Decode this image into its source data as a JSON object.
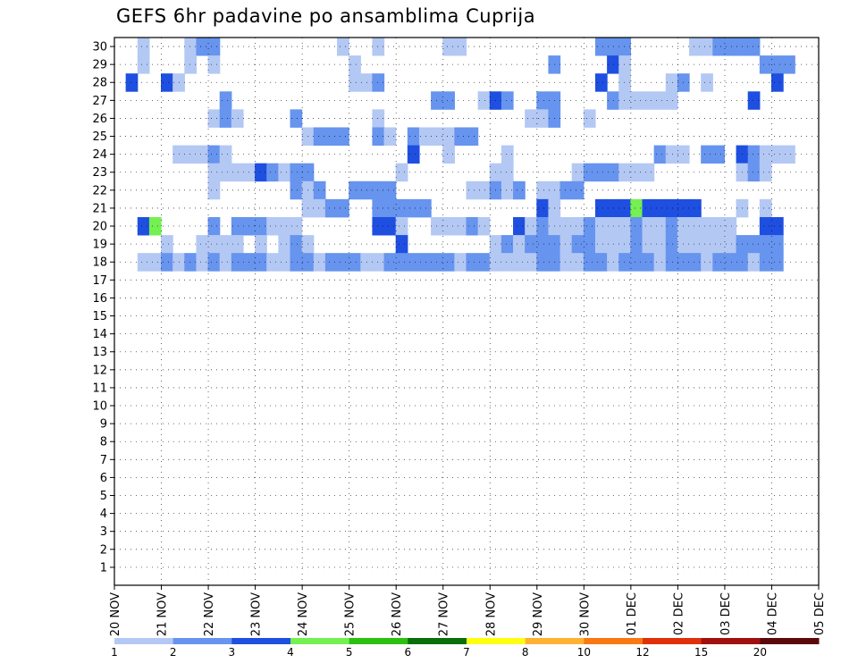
{
  "chart_data": {
    "type": "heatmap",
    "title": "GEFS 6hr padavine po ansamblima Cuprija",
    "xlabel": "",
    "ylabel": "",
    "x_ticks": [
      "20 NOV",
      "21 NOV",
      "22 NOV",
      "23 NOV",
      "24 NOV",
      "25 NOV",
      "26 NOV",
      "27 NOV",
      "28 NOV",
      "29 NOV",
      "30 NOV",
      "01 DEC",
      "02 DEC",
      "03 DEC",
      "04 DEC",
      "05 DEC"
    ],
    "y_ticks": [
      "1",
      "2",
      "3",
      "4",
      "5",
      "6",
      "7",
      "8",
      "9",
      "10",
      "11",
      "12",
      "13",
      "14",
      "15",
      "16",
      "17",
      "18",
      "19",
      "20",
      "21",
      "22",
      "23",
      "24",
      "25",
      "26",
      "27",
      "28",
      "29",
      "30"
    ],
    "x_range": [
      0,
      60
    ],
    "y_range": [
      0,
      30
    ],
    "time_step_hours": 6,
    "legend": {
      "placement": "bottom",
      "thresholds": [
        "1",
        "2",
        "3",
        "4",
        "5",
        "6",
        "7",
        "8",
        "10",
        "12",
        "15",
        "20"
      ],
      "colors": [
        "#b4c8f4",
        "#6694ee",
        "#1f4fe0",
        "#74f052",
        "#2cc012",
        "#0a6e0a",
        "#ffff14",
        "#ffb232",
        "#fa7812",
        "#e0300a",
        "#a01010",
        "#5a0a0a"
      ]
    },
    "cells": [
      [
        2,
        30,
        1
      ],
      [
        6,
        30,
        1
      ],
      [
        7,
        30,
        2
      ],
      [
        8,
        30,
        2
      ],
      [
        19,
        30,
        1
      ],
      [
        22,
        30,
        1
      ],
      [
        28,
        30,
        1
      ],
      [
        29,
        30,
        1
      ],
      [
        41,
        30,
        2
      ],
      [
        42,
        30,
        2
      ],
      [
        43,
        30,
        2
      ],
      [
        49,
        30,
        1
      ],
      [
        50,
        30,
        1
      ],
      [
        51,
        30,
        2
      ],
      [
        52,
        30,
        2
      ],
      [
        53,
        30,
        2
      ],
      [
        54,
        30,
        2
      ],
      [
        2,
        29,
        1
      ],
      [
        6,
        29,
        1
      ],
      [
        8,
        29,
        1
      ],
      [
        20,
        29,
        1
      ],
      [
        37,
        29,
        2
      ],
      [
        42,
        29,
        3
      ],
      [
        43,
        29,
        1
      ],
      [
        55,
        29,
        2
      ],
      [
        56,
        29,
        2
      ],
      [
        57,
        29,
        2
      ],
      [
        1,
        28,
        3
      ],
      [
        4,
        28,
        3
      ],
      [
        5,
        28,
        1
      ],
      [
        20,
        28,
        1
      ],
      [
        21,
        28,
        1
      ],
      [
        22,
        28,
        2
      ],
      [
        41,
        28,
        3
      ],
      [
        43,
        28,
        1
      ],
      [
        47,
        28,
        1
      ],
      [
        48,
        28,
        2
      ],
      [
        50,
        28,
        1
      ],
      [
        56,
        28,
        3
      ],
      [
        9,
        27,
        2
      ],
      [
        27,
        27,
        2
      ],
      [
        28,
        27,
        2
      ],
      [
        31,
        27,
        1
      ],
      [
        32,
        27,
        3
      ],
      [
        33,
        27,
        2
      ],
      [
        36,
        27,
        2
      ],
      [
        37,
        27,
        2
      ],
      [
        42,
        27,
        2
      ],
      [
        43,
        27,
        1
      ],
      [
        44,
        27,
        1
      ],
      [
        45,
        27,
        1
      ],
      [
        46,
        27,
        1
      ],
      [
        47,
        27,
        1
      ],
      [
        54,
        27,
        3
      ],
      [
        8,
        26,
        1
      ],
      [
        9,
        26,
        2
      ],
      [
        10,
        26,
        1
      ],
      [
        15,
        26,
        2
      ],
      [
        22,
        26,
        1
      ],
      [
        35,
        26,
        1
      ],
      [
        36,
        26,
        1
      ],
      [
        37,
        26,
        2
      ],
      [
        40,
        26,
        1
      ],
      [
        16,
        25,
        1
      ],
      [
        17,
        25,
        2
      ],
      [
        18,
        25,
        2
      ],
      [
        19,
        25,
        2
      ],
      [
        22,
        25,
        2
      ],
      [
        23,
        25,
        1
      ],
      [
        25,
        25,
        2
      ],
      [
        26,
        25,
        1
      ],
      [
        27,
        25,
        1
      ],
      [
        28,
        25,
        1
      ],
      [
        29,
        25,
        2
      ],
      [
        30,
        25,
        2
      ],
      [
        5,
        24,
        1
      ],
      [
        6,
        24,
        1
      ],
      [
        7,
        24,
        1
      ],
      [
        8,
        24,
        2
      ],
      [
        9,
        24,
        1
      ],
      [
        25,
        24,
        3
      ],
      [
        28,
        24,
        1
      ],
      [
        33,
        24,
        1
      ],
      [
        46,
        24,
        2
      ],
      [
        47,
        24,
        1
      ],
      [
        48,
        24,
        1
      ],
      [
        50,
        24,
        2
      ],
      [
        51,
        24,
        2
      ],
      [
        53,
        24,
        3
      ],
      [
        54,
        24,
        2
      ],
      [
        55,
        24,
        1
      ],
      [
        56,
        24,
        1
      ],
      [
        57,
        24,
        1
      ],
      [
        8,
        23,
        1
      ],
      [
        9,
        23,
        1
      ],
      [
        10,
        23,
        1
      ],
      [
        11,
        23,
        1
      ],
      [
        12,
        23,
        3
      ],
      [
        13,
        23,
        2
      ],
      [
        14,
        23,
        1
      ],
      [
        15,
        23,
        2
      ],
      [
        16,
        23,
        2
      ],
      [
        24,
        23,
        1
      ],
      [
        32,
        23,
        1
      ],
      [
        33,
        23,
        1
      ],
      [
        39,
        23,
        1
      ],
      [
        40,
        23,
        2
      ],
      [
        41,
        23,
        2
      ],
      [
        42,
        23,
        2
      ],
      [
        43,
        23,
        1
      ],
      [
        44,
        23,
        1
      ],
      [
        45,
        23,
        1
      ],
      [
        53,
        23,
        1
      ],
      [
        54,
        23,
        2
      ],
      [
        55,
        23,
        1
      ],
      [
        8,
        22,
        1
      ],
      [
        15,
        22,
        2
      ],
      [
        16,
        22,
        1
      ],
      [
        17,
        22,
        2
      ],
      [
        20,
        22,
        2
      ],
      [
        21,
        22,
        2
      ],
      [
        22,
        22,
        2
      ],
      [
        23,
        22,
        2
      ],
      [
        30,
        22,
        1
      ],
      [
        31,
        22,
        1
      ],
      [
        32,
        22,
        2
      ],
      [
        33,
        22,
        1
      ],
      [
        34,
        22,
        2
      ],
      [
        36,
        22,
        1
      ],
      [
        37,
        22,
        1
      ],
      [
        38,
        22,
        2
      ],
      [
        39,
        22,
        2
      ],
      [
        16,
        21,
        1
      ],
      [
        17,
        21,
        1
      ],
      [
        18,
        21,
        2
      ],
      [
        19,
        21,
        2
      ],
      [
        22,
        21,
        2
      ],
      [
        23,
        21,
        2
      ],
      [
        24,
        21,
        2
      ],
      [
        25,
        21,
        2
      ],
      [
        26,
        21,
        2
      ],
      [
        36,
        21,
        3
      ],
      [
        37,
        21,
        1
      ],
      [
        41,
        21,
        3
      ],
      [
        42,
        21,
        3
      ],
      [
        43,
        21,
        3
      ],
      [
        44,
        21,
        4
      ],
      [
        45,
        21,
        3
      ],
      [
        46,
        21,
        3
      ],
      [
        47,
        21,
        3
      ],
      [
        48,
        21,
        3
      ],
      [
        49,
        21,
        3
      ],
      [
        53,
        21,
        1
      ],
      [
        55,
        21,
        1
      ],
      [
        2,
        20,
        3
      ],
      [
        3,
        20,
        4
      ],
      [
        8,
        20,
        2
      ],
      [
        10,
        20,
        2
      ],
      [
        11,
        20,
        2
      ],
      [
        12,
        20,
        2
      ],
      [
        13,
        20,
        1
      ],
      [
        14,
        20,
        1
      ],
      [
        15,
        20,
        1
      ],
      [
        22,
        20,
        3
      ],
      [
        23,
        20,
        3
      ],
      [
        24,
        20,
        1
      ],
      [
        27,
        20,
        1
      ],
      [
        28,
        20,
        1
      ],
      [
        29,
        20,
        1
      ],
      [
        30,
        20,
        2
      ],
      [
        31,
        20,
        1
      ],
      [
        34,
        20,
        3
      ],
      [
        35,
        20,
        1
      ],
      [
        36,
        20,
        2
      ],
      [
        37,
        20,
        1
      ],
      [
        38,
        20,
        1
      ],
      [
        39,
        20,
        1
      ],
      [
        40,
        20,
        2
      ],
      [
        41,
        20,
        1
      ],
      [
        42,
        20,
        1
      ],
      [
        43,
        20,
        1
      ],
      [
        44,
        20,
        2
      ],
      [
        45,
        20,
        1
      ],
      [
        46,
        20,
        1
      ],
      [
        47,
        20,
        2
      ],
      [
        48,
        20,
        1
      ],
      [
        49,
        20,
        1
      ],
      [
        50,
        20,
        1
      ],
      [
        51,
        20,
        1
      ],
      [
        52,
        20,
        1
      ],
      [
        55,
        20,
        3
      ],
      [
        56,
        20,
        3
      ],
      [
        4,
        19,
        1
      ],
      [
        7,
        19,
        1
      ],
      [
        8,
        19,
        1
      ],
      [
        9,
        19,
        1
      ],
      [
        10,
        19,
        1
      ],
      [
        12,
        19,
        1
      ],
      [
        14,
        19,
        1
      ],
      [
        15,
        19,
        2
      ],
      [
        16,
        19,
        1
      ],
      [
        24,
        19,
        3
      ],
      [
        32,
        19,
        1
      ],
      [
        33,
        19,
        2
      ],
      [
        34,
        19,
        1
      ],
      [
        35,
        19,
        2
      ],
      [
        36,
        19,
        2
      ],
      [
        37,
        19,
        2
      ],
      [
        38,
        19,
        1
      ],
      [
        39,
        19,
        2
      ],
      [
        40,
        19,
        2
      ],
      [
        41,
        19,
        1
      ],
      [
        42,
        19,
        1
      ],
      [
        43,
        19,
        1
      ],
      [
        44,
        19,
        2
      ],
      [
        45,
        19,
        1
      ],
      [
        46,
        19,
        1
      ],
      [
        47,
        19,
        2
      ],
      [
        48,
        19,
        1
      ],
      [
        49,
        19,
        1
      ],
      [
        50,
        19,
        1
      ],
      [
        51,
        19,
        1
      ],
      [
        52,
        19,
        1
      ],
      [
        53,
        19,
        2
      ],
      [
        54,
        19,
        2
      ],
      [
        55,
        19,
        2
      ],
      [
        56,
        19,
        2
      ],
      [
        2,
        18,
        1
      ],
      [
        3,
        18,
        1
      ],
      [
        4,
        18,
        2
      ],
      [
        5,
        18,
        1
      ],
      [
        6,
        18,
        2
      ],
      [
        7,
        18,
        1
      ],
      [
        8,
        18,
        2
      ],
      [
        9,
        18,
        1
      ],
      [
        10,
        18,
        2
      ],
      [
        11,
        18,
        2
      ],
      [
        12,
        18,
        2
      ],
      [
        13,
        18,
        1
      ],
      [
        14,
        18,
        1
      ],
      [
        15,
        18,
        2
      ],
      [
        16,
        18,
        2
      ],
      [
        17,
        18,
        1
      ],
      [
        18,
        18,
        2
      ],
      [
        19,
        18,
        2
      ],
      [
        20,
        18,
        2
      ],
      [
        21,
        18,
        1
      ],
      [
        22,
        18,
        1
      ],
      [
        23,
        18,
        2
      ],
      [
        24,
        18,
        2
      ],
      [
        25,
        18,
        2
      ],
      [
        26,
        18,
        2
      ],
      [
        27,
        18,
        2
      ],
      [
        28,
        18,
        2
      ],
      [
        29,
        18,
        1
      ],
      [
        30,
        18,
        2
      ],
      [
        31,
        18,
        2
      ],
      [
        32,
        18,
        1
      ],
      [
        33,
        18,
        1
      ],
      [
        34,
        18,
        1
      ],
      [
        35,
        18,
        1
      ],
      [
        36,
        18,
        2
      ],
      [
        37,
        18,
        2
      ],
      [
        38,
        18,
        1
      ],
      [
        39,
        18,
        1
      ],
      [
        40,
        18,
        2
      ],
      [
        41,
        18,
        2
      ],
      [
        42,
        18,
        1
      ],
      [
        43,
        18,
        2
      ],
      [
        44,
        18,
        2
      ],
      [
        45,
        18,
        2
      ],
      [
        46,
        18,
        1
      ],
      [
        47,
        18,
        2
      ],
      [
        48,
        18,
        2
      ],
      [
        49,
        18,
        2
      ],
      [
        50,
        18,
        1
      ],
      [
        51,
        18,
        2
      ],
      [
        52,
        18,
        2
      ],
      [
        53,
        18,
        2
      ],
      [
        54,
        18,
        1
      ],
      [
        55,
        18,
        2
      ],
      [
        56,
        18,
        2
      ]
    ]
  }
}
